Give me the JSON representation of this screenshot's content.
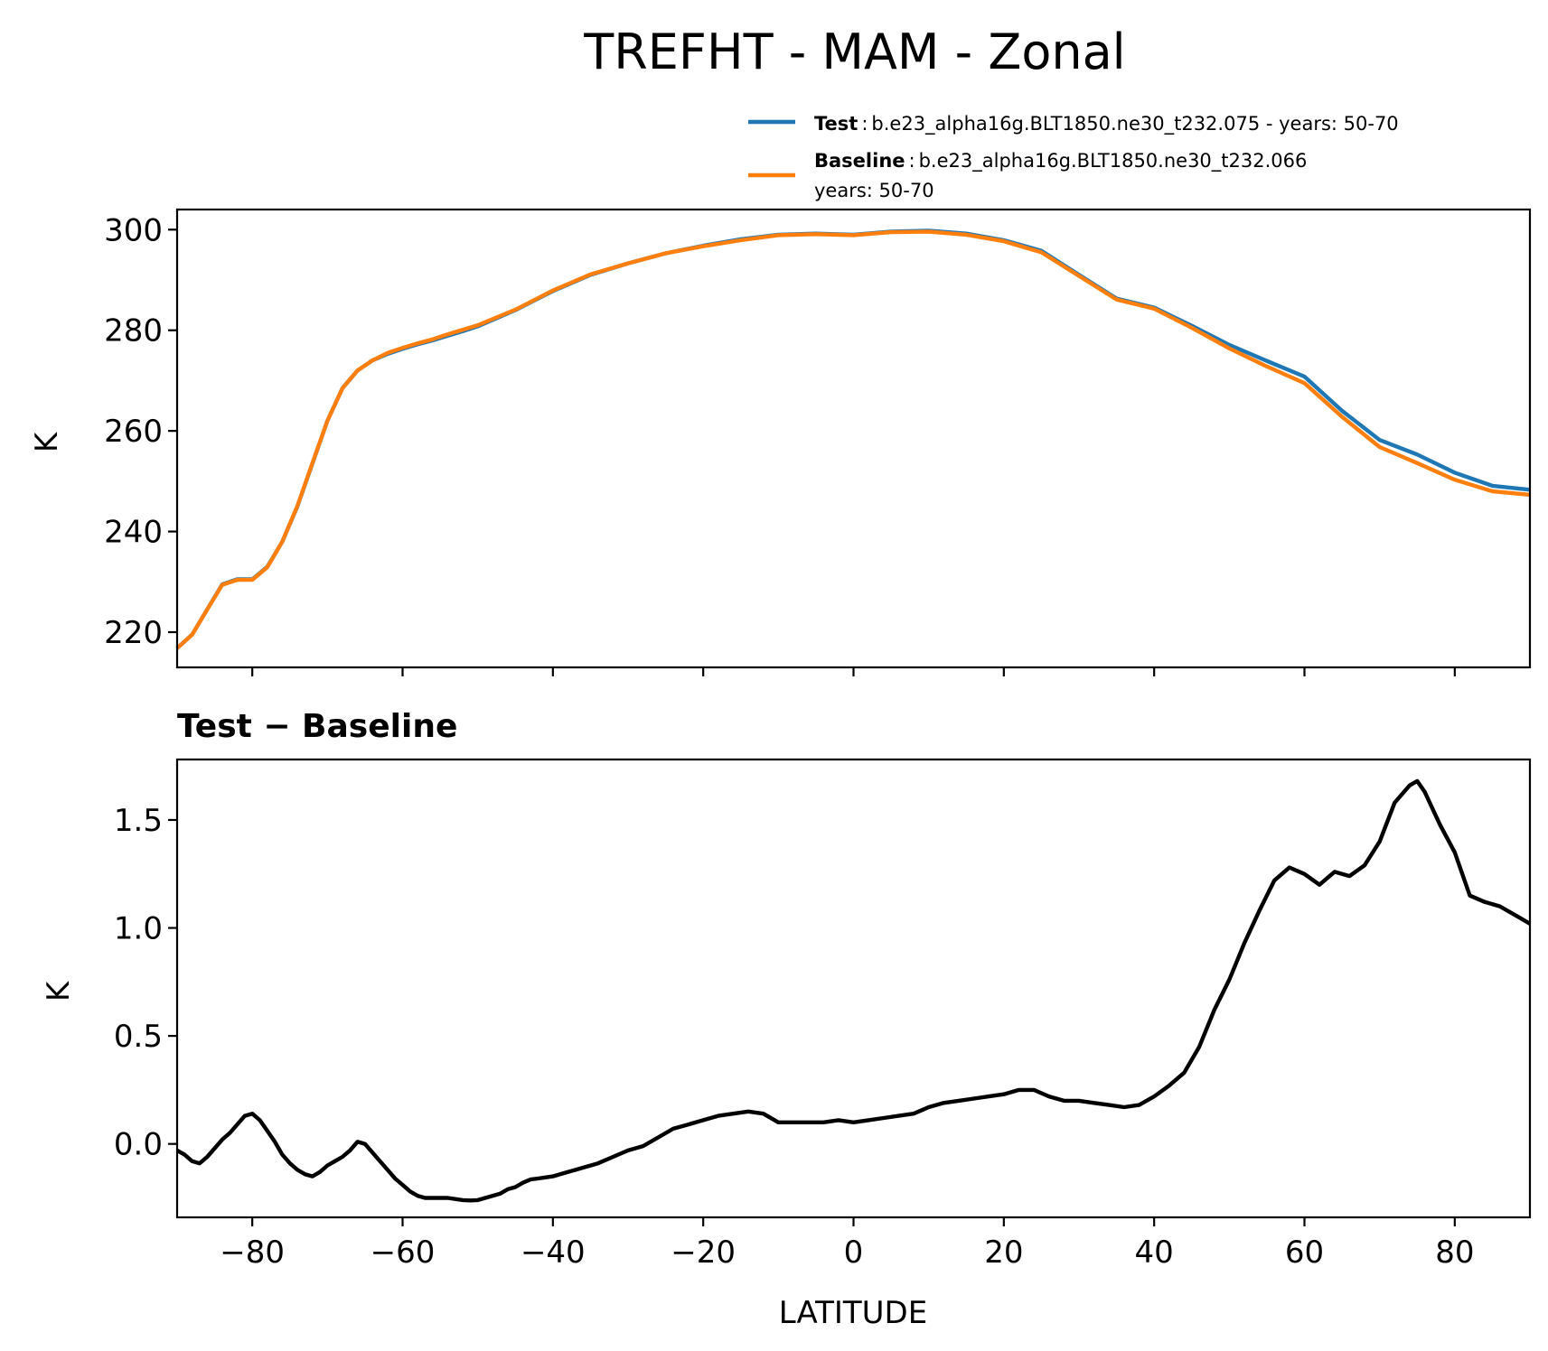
{
  "chart_data": [
    {
      "type": "line",
      "title": "TREFHT - MAM - Zonal",
      "xlabel": "",
      "ylabel": "K",
      "xlim": [
        -90,
        90
      ],
      "ylim": [
        213,
        304
      ],
      "yticks": [
        220,
        240,
        260,
        280,
        300
      ],
      "xticks": [
        -80,
        -60,
        -40,
        -20,
        0,
        20,
        40,
        60,
        80
      ],
      "legend": {
        "placement": "above-right",
        "entries": [
          {
            "name": "Test",
            "sep": ":",
            "text": "b.e23_alpha16g.BLT1850.ne30_t232.075 - years: 50-70",
            "color": "#1f77b4"
          },
          {
            "name": "Baseline",
            "sep": ":",
            "text": "b.e23_alpha16g.BLT1850.ne30_t232.066",
            "text2": "years: 50-70",
            "color": "#ff7f0e"
          }
        ]
      },
      "x": [
        -90,
        -88,
        -86,
        -84,
        -82,
        -80,
        -78,
        -76,
        -74,
        -72,
        -70,
        -68,
        -66,
        -64,
        -62,
        -60,
        -58,
        -56,
        -54,
        -52,
        -50,
        -45,
        -40,
        -35,
        -30,
        -25,
        -20,
        -15,
        -10,
        -5,
        0,
        5,
        10,
        15,
        20,
        25,
        30,
        35,
        40,
        45,
        50,
        55,
        60,
        65,
        70,
        75,
        80,
        85,
        90
      ],
      "series": [
        {
          "name": "Test",
          "color": "#1f77b4",
          "values": [
            216.8,
            219.5,
            224.5,
            229.5,
            230.5,
            230.5,
            233.0,
            238.0,
            245.0,
            253.5,
            262.0,
            268.5,
            272.0,
            274.0,
            275.3,
            276.3,
            277.2,
            278.0,
            278.9,
            279.8,
            280.8,
            284.0,
            287.8,
            291.0,
            293.3,
            295.3,
            296.8,
            298.1,
            299.0,
            299.2,
            299.0,
            299.6,
            299.8,
            299.2,
            297.9,
            295.8,
            291.0,
            286.3,
            284.5,
            280.9,
            277.1,
            273.9,
            270.8,
            264.0,
            258.2,
            255.3,
            251.7,
            249.1,
            248.3
          ]
        },
        {
          "name": "Baseline",
          "color": "#ff7f0e",
          "values": [
            216.8,
            219.5,
            224.5,
            229.4,
            230.4,
            230.4,
            232.9,
            238.0,
            245.1,
            253.6,
            262.0,
            268.5,
            272.0,
            274.0,
            275.5,
            276.5,
            277.4,
            278.2,
            279.2,
            280.1,
            281.0,
            284.1,
            287.9,
            291.1,
            293.3,
            295.3,
            296.7,
            297.9,
            298.9,
            299.1,
            298.9,
            299.5,
            299.6,
            299.0,
            297.7,
            295.5,
            290.8,
            286.1,
            284.3,
            280.5,
            276.4,
            272.8,
            269.5,
            262.8,
            256.8,
            253.6,
            250.3,
            248.0,
            247.3
          ]
        }
      ]
    },
    {
      "type": "line",
      "title": "Test − Baseline",
      "xlabel": "LATITUDE",
      "ylabel": "K",
      "xlim": [
        -90,
        90
      ],
      "ylim": [
        -0.34,
        1.78
      ],
      "yticks": [
        0.0,
        0.5,
        1.0,
        1.5
      ],
      "ytick_labels": [
        "0.0",
        "0.5",
        "1.0",
        "1.5"
      ],
      "xticks": [
        -80,
        -60,
        -40,
        -20,
        0,
        20,
        40,
        60,
        80
      ],
      "xtick_labels": [
        "−80",
        "−60",
        "−40",
        "−20",
        "0",
        "20",
        "40",
        "60",
        "80"
      ],
      "series": [
        {
          "name": "Test − Baseline",
          "color": "#000000",
          "x": [
            -90,
            -89,
            -88,
            -87,
            -86,
            -85,
            -84,
            -83,
            -82,
            -81,
            -80,
            -79,
            -78,
            -77,
            -76,
            -75,
            -74,
            -73,
            -72,
            -71,
            -70,
            -69,
            -68,
            -67,
            -66,
            -65,
            -64,
            -63,
            -62,
            -61,
            -60,
            -59,
            -58,
            -57,
            -56,
            -55,
            -54,
            -53,
            -52,
            -51,
            -50,
            -49,
            -48,
            -47,
            -46,
            -45,
            -44,
            -43,
            -42,
            -41,
            -40,
            -38,
            -36,
            -34,
            -32,
            -30,
            -28,
            -26,
            -24,
            -22,
            -20,
            -18,
            -16,
            -14,
            -12,
            -10,
            -8,
            -6,
            -4,
            -2,
            0,
            2,
            4,
            6,
            8,
            10,
            12,
            14,
            16,
            18,
            20,
            22,
            24,
            26,
            28,
            30,
            32,
            34,
            36,
            38,
            40,
            42,
            44,
            46,
            48,
            50,
            52,
            54,
            56,
            58,
            60,
            62,
            64,
            66,
            68,
            70,
            72,
            74,
            75,
            76,
            78,
            80,
            82,
            84,
            86,
            88,
            90
          ],
          "values": [
            -0.03,
            -0.05,
            -0.08,
            -0.09,
            -0.06,
            -0.02,
            0.02,
            0.05,
            0.09,
            0.13,
            0.14,
            0.11,
            0.06,
            0.01,
            -0.05,
            -0.09,
            -0.12,
            -0.14,
            -0.15,
            -0.13,
            -0.1,
            -0.08,
            -0.06,
            -0.03,
            0.01,
            0.0,
            -0.04,
            -0.08,
            -0.12,
            -0.16,
            -0.19,
            -0.22,
            -0.24,
            -0.25,
            -0.25,
            -0.25,
            -0.25,
            -0.255,
            -0.26,
            -0.262,
            -0.26,
            -0.25,
            -0.24,
            -0.23,
            -0.21,
            -0.2,
            -0.18,
            -0.165,
            -0.16,
            -0.155,
            -0.15,
            -0.13,
            -0.11,
            -0.09,
            -0.06,
            -0.03,
            -0.01,
            0.03,
            0.07,
            0.09,
            0.11,
            0.13,
            0.14,
            0.15,
            0.14,
            0.1,
            0.1,
            0.1,
            0.1,
            0.11,
            0.1,
            0.11,
            0.12,
            0.13,
            0.14,
            0.17,
            0.19,
            0.2,
            0.21,
            0.22,
            0.23,
            0.25,
            0.25,
            0.22,
            0.2,
            0.2,
            0.19,
            0.18,
            0.17,
            0.18,
            0.22,
            0.27,
            0.33,
            0.45,
            0.62,
            0.76,
            0.93,
            1.08,
            1.22,
            1.28,
            1.25,
            1.2,
            1.26,
            1.24,
            1.29,
            1.4,
            1.58,
            1.66,
            1.68,
            1.63,
            1.48,
            1.35,
            1.15,
            1.12,
            1.1,
            1.06,
            1.02
          ]
        }
      ]
    }
  ]
}
